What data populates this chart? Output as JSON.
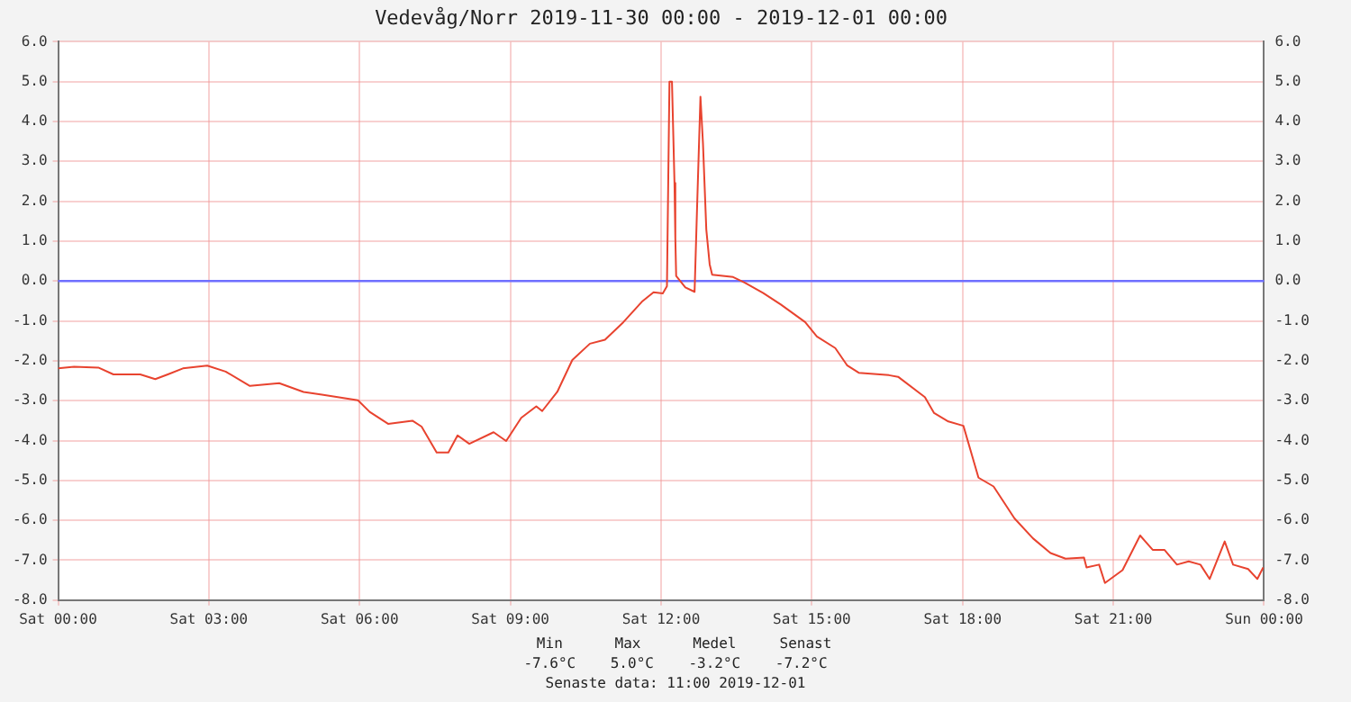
{
  "chart_data": {
    "type": "line",
    "title": "Vedevåg/Norr 2019-11-30 00:00 - 2019-12-01 00:00",
    "series": [
      {
        "color": "#e8432f",
        "x": [
          "2019-11-30T00:00",
          "2019-11-30T00:19",
          "2019-11-30T00:48",
          "2019-11-30T01:06",
          "2019-11-30T01:38",
          "2019-11-30T01:56",
          "2019-11-30T02:11",
          "2019-11-30T02:29",
          "2019-11-30T02:58",
          "2019-11-30T03:20",
          "2019-11-30T03:49",
          "2019-11-30T04:24",
          "2019-11-30T04:53",
          "2019-11-30T05:15",
          "2019-11-30T05:58",
          "2019-11-30T06:12",
          "2019-11-30T06:34",
          "2019-11-30T07:03",
          "2019-11-30T07:14",
          "2019-11-30T07:32",
          "2019-11-30T07:46",
          "2019-11-30T07:57",
          "2019-11-30T08:11",
          "2019-11-30T08:40",
          "2019-11-30T08:55",
          "2019-11-30T09:13",
          "2019-11-30T09:31",
          "2019-11-30T09:38",
          "2019-11-30T09:56",
          "2019-11-30T10:14",
          "2019-11-30T10:35",
          "2019-11-30T10:53",
          "2019-11-30T11:15",
          "2019-11-30T11:37",
          "2019-11-30T11:51",
          "2019-11-30T12:02",
          "2019-11-30T12:07",
          "2019-11-30T12:10",
          "2019-11-30T12:13",
          "2019-11-30T12:16",
          "2019-11-30T12:17",
          "2019-11-30T12:18",
          "2019-11-30T12:29",
          "2019-11-30T12:40",
          "2019-11-30T12:43",
          "2019-11-30T12:47",
          "2019-11-30T12:50",
          "2019-11-30T12:54",
          "2019-11-30T12:58",
          "2019-11-30T13:01",
          "2019-11-30T13:26",
          "2019-11-30T13:40",
          "2019-11-30T14:02",
          "2019-11-30T14:23",
          "2019-11-30T14:52",
          "2019-11-30T15:06",
          "2019-11-30T15:28",
          "2019-11-30T15:42",
          "2019-11-30T15:56",
          "2019-11-30T16:32",
          "2019-11-30T16:43",
          "2019-11-30T17:15",
          "2019-11-30T17:26",
          "2019-11-30T17:43",
          "2019-11-30T18:01",
          "2019-11-30T18:19",
          "2019-11-30T18:37",
          "2019-11-30T19:02",
          "2019-11-30T19:24",
          "2019-11-30T19:45",
          "2019-11-30T20:03",
          "2019-11-30T20:25",
          "2019-11-30T20:28",
          "2019-11-30T20:43",
          "2019-11-30T20:50",
          "2019-11-30T21:11",
          "2019-11-30T21:32",
          "2019-11-30T21:47",
          "2019-11-30T22:01",
          "2019-11-30T22:16",
          "2019-11-30T22:30",
          "2019-11-30T22:44",
          "2019-11-30T22:55",
          "2019-11-30T23:13",
          "2019-11-30T23:23",
          "2019-11-30T23:41",
          "2019-11-30T23:52",
          "2019-11-30T23:59"
        ],
        "values": [
          -2.19,
          -2.15,
          -2.17,
          -2.34,
          -2.34,
          -2.46,
          -2.34,
          -2.19,
          -2.12,
          -2.27,
          -2.63,
          -2.56,
          -2.78,
          -2.85,
          -2.99,
          -3.28,
          -3.58,
          -3.5,
          -3.65,
          -4.3,
          -4.3,
          -3.87,
          -4.08,
          -3.79,
          -4.01,
          -3.43,
          -3.14,
          -3.26,
          -2.78,
          -1.98,
          -1.57,
          -1.47,
          -1.03,
          -0.52,
          -0.28,
          -0.31,
          -0.13,
          5.0,
          5.0,
          2.46,
          1.08,
          0.13,
          -0.16,
          -0.27,
          1.87,
          4.62,
          3.46,
          1.29,
          0.42,
          0.16,
          0.1,
          -0.04,
          -0.3,
          -0.59,
          -1.03,
          -1.39,
          -1.68,
          -2.11,
          -2.3,
          -2.36,
          -2.4,
          -2.91,
          -3.31,
          -3.52,
          -3.63,
          -4.93,
          -5.15,
          -5.95,
          -6.45,
          -6.82,
          -6.96,
          -6.93,
          -7.18,
          -7.11,
          -7.57,
          -7.25,
          -6.38,
          -6.74,
          -6.74,
          -7.11,
          -7.03,
          -7.11,
          -7.47,
          -6.53,
          -7.11,
          -7.22,
          -7.47,
          -7.18
        ]
      }
    ],
    "xlim": [
      "2019-11-30T00:00",
      "2019-12-01T00:00"
    ],
    "xticks": [
      {
        "value": "2019-11-30T00:00",
        "label": "Sat 00:00"
      },
      {
        "value": "2019-11-30T03:00",
        "label": "Sat 03:00"
      },
      {
        "value": "2019-11-30T06:00",
        "label": "Sat 06:00"
      },
      {
        "value": "2019-11-30T09:00",
        "label": "Sat 09:00"
      },
      {
        "value": "2019-11-30T12:00",
        "label": "Sat 12:00"
      },
      {
        "value": "2019-11-30T15:00",
        "label": "Sat 15:00"
      },
      {
        "value": "2019-11-30T18:00",
        "label": "Sat 18:00"
      },
      {
        "value": "2019-11-30T21:00",
        "label": "Sat 21:00"
      },
      {
        "value": "2019-12-01T00:00",
        "label": "Sun 00:00"
      }
    ],
    "ylim": [
      -8,
      6
    ],
    "yticks": [
      {
        "value": -8,
        "label": "-8.0"
      },
      {
        "value": -7,
        "label": "-7.0"
      },
      {
        "value": -6,
        "label": "-6.0"
      },
      {
        "value": -5,
        "label": "-5.0"
      },
      {
        "value": -4,
        "label": "-4.0"
      },
      {
        "value": -3,
        "label": "-3.0"
      },
      {
        "value": -2,
        "label": "-2.0"
      },
      {
        "value": -1,
        "label": "-1.0"
      },
      {
        "value": 0,
        "label": "0.0"
      },
      {
        "value": 1,
        "label": "1.0"
      },
      {
        "value": 2,
        "label": "2.0"
      },
      {
        "value": 3,
        "label": "3.0"
      },
      {
        "value": 4,
        "label": "4.0"
      },
      {
        "value": 5,
        "label": "5.0"
      },
      {
        "value": 6,
        "label": "6.0"
      }
    ],
    "y2lim": [
      -8,
      6
    ],
    "y2ticks": [
      {
        "value": -8,
        "label": "-8.0"
      },
      {
        "value": -7,
        "label": "-7.0"
      },
      {
        "value": -6,
        "label": "-6.0"
      },
      {
        "value": -5,
        "label": "-5.0"
      },
      {
        "value": -4,
        "label": "-4.0"
      },
      {
        "value": -3,
        "label": "-3.0"
      },
      {
        "value": -2,
        "label": "-2.0"
      },
      {
        "value": -1,
        "label": "-1.0"
      },
      {
        "value": 0,
        "label": "0.0"
      },
      {
        "value": 1,
        "label": "1.0"
      },
      {
        "value": 2,
        "label": "2.0"
      },
      {
        "value": 3,
        "label": "3.0"
      },
      {
        "value": 4,
        "label": "4.0"
      },
      {
        "value": 5,
        "label": "5.0"
      },
      {
        "value": 6,
        "label": "6.0"
      }
    ],
    "ref_lines": [
      {
        "axis": "y",
        "value": 0,
        "color": "#6f6fff"
      }
    ],
    "annotations": [
      "  Min      Max      Medel     Senast",
      "-7.6°C    5.0°C    -3.2°C    -7.2°C",
      "Senaste data: 11:00 2019-12-01"
    ],
    "grid": true,
    "legend": false,
    "marker": "none",
    "line_style": "solid"
  }
}
